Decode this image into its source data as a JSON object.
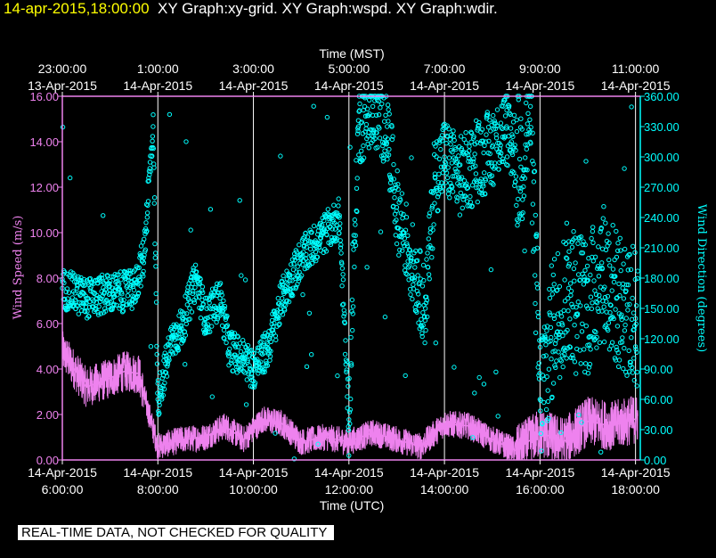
{
  "header": {
    "timestamp": "14-apr-2015,18:00:00",
    "titles": "XY Graph:xy-grid.  XY Graph:wspd.  XY Graph:wdir."
  },
  "footer": {
    "quality_note": "REAL-TIME DATA, NOT CHECKED FOR QUALITY"
  },
  "chart_data": {
    "type": "scatter",
    "x_top_label": "Time (MST)",
    "x_bottom_label": "Time (UTC)",
    "y_left_label": "Wind Speed (m/s)",
    "y_right_label": "Wind Direction (degrees)",
    "x_range_utc_hours": [
      6,
      18.1
    ],
    "y_left_range": [
      0,
      16
    ],
    "y_right_range": [
      0,
      360
    ],
    "grid": true,
    "colors": {
      "speed": "#ee82ee",
      "direction": "#00ffff",
      "axis": "#ee82ee",
      "grid": "#ffffff"
    },
    "top_ticks": [
      {
        "time": "23:00:00",
        "date": "13-Apr-2015",
        "utc_hour": 6
      },
      {
        "time": "1:00:00",
        "date": "14-Apr-2015",
        "utc_hour": 8
      },
      {
        "time": "3:00:00",
        "date": "14-Apr-2015",
        "utc_hour": 10
      },
      {
        "time": "5:00:00",
        "date": "14-Apr-2015",
        "utc_hour": 12
      },
      {
        "time": "7:00:00",
        "date": "14-Apr-2015",
        "utc_hour": 14
      },
      {
        "time": "9:00:00",
        "date": "14-Apr-2015",
        "utc_hour": 16
      },
      {
        "time": "11:00:00",
        "date": "14-Apr-2015",
        "utc_hour": 18
      }
    ],
    "bottom_ticks": [
      {
        "date": "14-Apr-2015",
        "time": "6:00:00",
        "utc_hour": 6
      },
      {
        "date": "14-Apr-2015",
        "time": "8:00:00",
        "utc_hour": 8
      },
      {
        "date": "14-Apr-2015",
        "time": "10:00:00",
        "utc_hour": 10
      },
      {
        "date": "14-Apr-2015",
        "time": "12:00:00",
        "utc_hour": 12
      },
      {
        "date": "14-Apr-2015",
        "time": "14:00:00",
        "utc_hour": 14
      },
      {
        "date": "14-Apr-2015",
        "time": "16:00:00",
        "utc_hour": 16
      },
      {
        "date": "14-Apr-2015",
        "time": "18:00:00",
        "utc_hour": 18
      }
    ],
    "left_ticks": [
      "0.00",
      "2.00",
      "4.00",
      "6.00",
      "8.00",
      "10.00",
      "12.00",
      "14.00",
      "16.00"
    ],
    "right_ticks": [
      "0.00",
      "30.00",
      "60.00",
      "90.00",
      "120.00",
      "150.00",
      "180.00",
      "210.00",
      "240.00",
      "270.00",
      "300.00",
      "330.00",
      "360.00"
    ],
    "series": [
      {
        "name": "wspd",
        "style": "line",
        "x": [
          6.0,
          6.5,
          7.0,
          7.3,
          7.6,
          7.75,
          8.0,
          8.5,
          9.0,
          9.4,
          9.8,
          10.2,
          10.6,
          11.0,
          11.5,
          12.0,
          12.5,
          13.0,
          13.5,
          14.0,
          14.5,
          15.0,
          15.5,
          16.0,
          16.5,
          17.0,
          17.5,
          18.0
        ],
        "values": [
          4.8,
          3.2,
          3.6,
          3.9,
          3.8,
          2.5,
          0.6,
          0.9,
          1.0,
          1.5,
          0.9,
          1.8,
          1.6,
          0.8,
          1.0,
          0.8,
          1.2,
          0.9,
          0.6,
          1.6,
          1.5,
          0.9,
          0.4,
          1.2,
          0.8,
          1.7,
          1.5,
          1.8
        ]
      },
      {
        "name": "wdir",
        "style": "markers",
        "x": [
          6.0,
          6.5,
          7.0,
          7.5,
          7.7,
          7.9,
          8.0,
          8.3,
          8.5,
          8.8,
          9.0,
          9.3,
          9.5,
          9.8,
          10.0,
          10.3,
          10.6,
          11.0,
          11.4,
          11.8,
          12.0,
          12.2,
          12.5,
          12.8,
          13.0,
          13.3,
          13.6,
          13.8,
          14.0,
          14.3,
          14.6,
          15.0,
          15.3,
          15.6,
          15.8,
          16.0,
          16.3,
          16.6,
          17.0,
          17.3,
          17.6,
          18.0
        ],
        "values": [
          170,
          160,
          165,
          168,
          200,
          330,
          60,
          120,
          130,
          180,
          140,
          160,
          110,
          100,
          90,
          110,
          160,
          200,
          220,
          240,
          40,
          330,
          350,
          330,
          250,
          200,
          150,
          280,
          300,
          280,
          290,
          310,
          330,
          290,
          350,
          60,
          140,
          170,
          150,
          190,
          160,
          140
        ]
      }
    ]
  }
}
